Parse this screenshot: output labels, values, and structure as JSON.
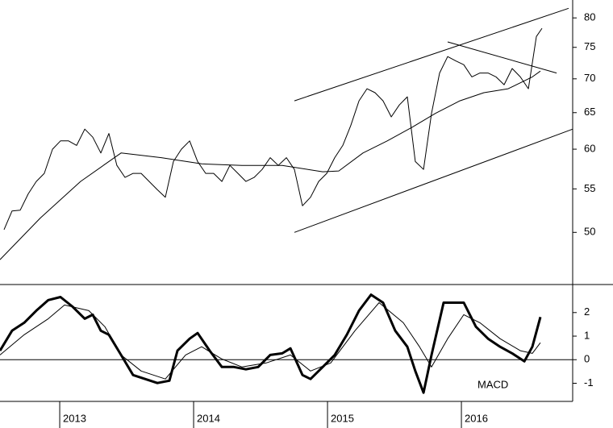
{
  "chart_data": [
    {
      "type": "line",
      "log_scale": true,
      "xlim": [
        2012.554,
        2016.831
      ],
      "ylim": [
        44.6,
        83.2
      ],
      "yticks": [
        50,
        55,
        60,
        65,
        70,
        75,
        80
      ],
      "series": [
        {
          "color": "#000000",
          "width": 1,
          "x": [
            2012.584,
            2012.644,
            2012.705,
            2012.765,
            2012.825,
            2012.885,
            2012.946,
            2013.006,
            2013.066,
            2013.126,
            2013.187,
            2013.247,
            2013.307,
            2013.367,
            2013.427,
            2013.488,
            2013.548,
            2013.608,
            2013.668,
            2013.729,
            2013.789,
            2013.849,
            2013.909,
            2013.97,
            2014.03,
            2014.09,
            2014.15,
            2014.211,
            2014.271,
            2014.331,
            2014.391,
            2014.452,
            2014.512,
            2014.572,
            2014.632,
            2014.693,
            2014.753,
            2014.813,
            2014.873,
            2014.934,
            2014.994,
            2015.054,
            2015.114,
            2015.174,
            2015.235,
            2015.295,
            2015.355,
            2015.415,
            2015.476,
            2015.536,
            2015.596,
            2015.656,
            2015.717,
            2015.777,
            2015.837,
            2015.897,
            2015.958,
            2016.018,
            2016.078,
            2016.138,
            2016.199,
            2016.259,
            2016.319,
            2016.379,
            2016.44,
            2016.5,
            2016.56,
            2016.602
          ],
          "values": [
            50.3,
            52.4,
            52.5,
            54.4,
            55.9,
            56.9,
            60.0,
            61.1,
            61.1,
            60.5,
            62.7,
            61.6,
            59.5,
            62.1,
            57.9,
            56.4,
            56.9,
            56.9,
            55.9,
            54.9,
            54.0,
            58.4,
            60.0,
            61.1,
            58.4,
            56.9,
            56.9,
            55.9,
            57.9,
            56.9,
            55.9,
            56.4,
            57.4,
            58.9,
            57.9,
            58.9,
            57.4,
            53.0,
            54.0,
            55.9,
            56.9,
            58.9,
            60.5,
            63.2,
            66.7,
            68.5,
            67.9,
            66.7,
            64.4,
            66.1,
            67.3,
            58.4,
            57.4,
            64.9,
            70.9,
            73.5,
            72.8,
            72.2,
            70.3,
            70.9,
            70.9,
            70.3,
            69.1,
            71.6,
            70.3,
            68.5,
            76.8,
            78.2
          ]
        },
        {
          "color": "#000000",
          "width": 1,
          "x": [
            2012.554,
            2012.855,
            2013.156,
            2013.458,
            2013.759,
            2014.06,
            2014.361,
            2014.662,
            2014.964,
            2015.084,
            2015.265,
            2015.446,
            2015.626,
            2015.807,
            2015.988,
            2016.168,
            2016.349,
            2016.53,
            2016.59
          ],
          "values": [
            47.1,
            51.6,
            55.9,
            59.5,
            58.9,
            58.1,
            57.9,
            57.9,
            57.1,
            57.2,
            59.5,
            61.1,
            62.9,
            64.9,
            66.7,
            67.9,
            68.5,
            70.3,
            71.2
          ]
        },
        {
          "color": "#000000",
          "width": 1,
          "x": [
            2014.753,
            2016.801
          ],
          "values": [
            66.7,
            81.7
          ]
        },
        {
          "color": "#000000",
          "width": 1,
          "x": [
            2014.753,
            2016.831
          ],
          "values": [
            50.0,
            62.7
          ]
        },
        {
          "color": "#000000",
          "width": 1,
          "x": [
            2015.897,
            2016.711
          ],
          "values": [
            75.9,
            70.9
          ]
        }
      ]
    },
    {
      "type": "line",
      "label": "MACD",
      "zero_line": true,
      "xlim": [
        2012.554,
        2016.831
      ],
      "ylim": [
        -1.77,
        3.19
      ],
      "yticks": [
        -1,
        0,
        1,
        2
      ],
      "xticks": [
        2013,
        2014,
        2015,
        2016
      ],
      "series": [
        {
          "color": "#000000",
          "width": 3,
          "x": [
            2012.554,
            2012.644,
            2012.735,
            2012.825,
            2012.915,
            2013.006,
            2013.096,
            2013.187,
            2013.247,
            2013.307,
            2013.367,
            2013.458,
            2013.548,
            2013.638,
            2013.729,
            2013.819,
            2013.879,
            2013.97,
            2014.03,
            2014.12,
            2014.211,
            2014.301,
            2014.391,
            2014.482,
            2014.572,
            2014.662,
            2014.723,
            2014.813,
            2014.873,
            2014.964,
            2015.054,
            2015.144,
            2015.235,
            2015.325,
            2015.415,
            2015.506,
            2015.596,
            2015.656,
            2015.717,
            2015.777,
            2015.867,
            2015.958,
            2016.018,
            2016.108,
            2016.199,
            2016.289,
            2016.379,
            2016.47,
            2016.53,
            2016.59
          ],
          "values": [
            0.38,
            1.23,
            1.57,
            2.08,
            2.53,
            2.66,
            2.25,
            1.74,
            1.91,
            1.23,
            1.06,
            0.2,
            -0.65,
            -0.82,
            -0.99,
            -0.89,
            0.38,
            0.89,
            1.13,
            0.38,
            -0.31,
            -0.31,
            -0.41,
            -0.31,
            0.2,
            0.27,
            0.48,
            -0.65,
            -0.82,
            -0.31,
            0.2,
            1.06,
            2.08,
            2.76,
            2.42,
            1.23,
            0.55,
            -0.48,
            -1.4,
            0.2,
            2.42,
            2.42,
            2.42,
            1.4,
            0.89,
            0.55,
            0.27,
            -0.07,
            0.55,
            1.81
          ]
        },
        {
          "color": "#000000",
          "width": 1,
          "x": [
            2012.554,
            2012.735,
            2012.915,
            2013.036,
            2013.217,
            2013.337,
            2013.458,
            2013.608,
            2013.789,
            2013.94,
            2014.06,
            2014.211,
            2014.361,
            2014.542,
            2014.723,
            2014.873,
            2015.024,
            2015.205,
            2015.385,
            2015.566,
            2015.687,
            2015.777,
            2015.897,
            2016.018,
            2016.138,
            2016.289,
            2016.44,
            2016.53,
            2016.59
          ],
          "values": [
            0.2,
            1.06,
            1.74,
            2.32,
            2.08,
            1.4,
            0.2,
            -0.48,
            -0.82,
            0.2,
            0.55,
            0.03,
            -0.31,
            -0.14,
            0.2,
            -0.48,
            -0.14,
            1.23,
            2.42,
            1.57,
            0.55,
            -0.31,
            0.89,
            1.91,
            1.57,
            0.89,
            0.38,
            0.27,
            0.72
          ]
        }
      ]
    }
  ]
}
